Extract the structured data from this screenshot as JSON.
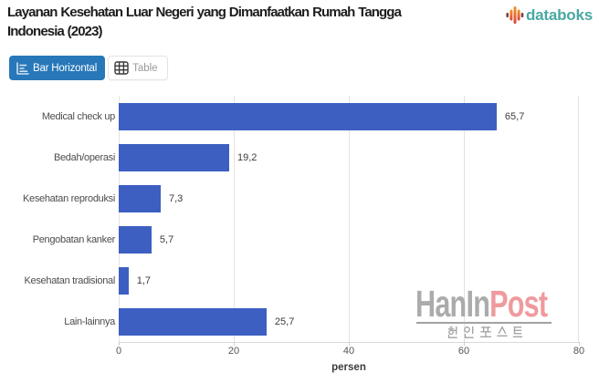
{
  "header": {
    "title": "Layanan Kesehatan Luar Negeri yang Dimanfaatkan Rumah Tangga Indonesia (2023)"
  },
  "brand": {
    "name": "databoks",
    "text_color": "#4aa8a2"
  },
  "toolbar": {
    "bar_horizontal_label": "Bar Horizontal",
    "table_label": "Table",
    "active_color": "#2878b9"
  },
  "chart_data": {
    "type": "bar",
    "orientation": "horizontal",
    "categories": [
      "Medical check up",
      "Bedah/operasi",
      "Kesehatan reproduksi",
      "Pengobatan kanker",
      "Kesehatan tradisional",
      "Lain-lainnya"
    ],
    "values": [
      65.7,
      19.2,
      7.3,
      5.7,
      1.7,
      25.7
    ],
    "value_labels": [
      "65,7",
      "19,2",
      "7,3",
      "5,7",
      "1,7",
      "25,7"
    ],
    "xlabel": "persen",
    "xlim": [
      0,
      80
    ],
    "xticks": [
      0,
      20,
      40,
      60,
      80
    ],
    "bar_color": "#3c5fc1",
    "grid": true,
    "legend": false
  },
  "watermark": {
    "latin_gray": "HanIn",
    "latin_red": "Post",
    "korean": "한인포스트"
  }
}
